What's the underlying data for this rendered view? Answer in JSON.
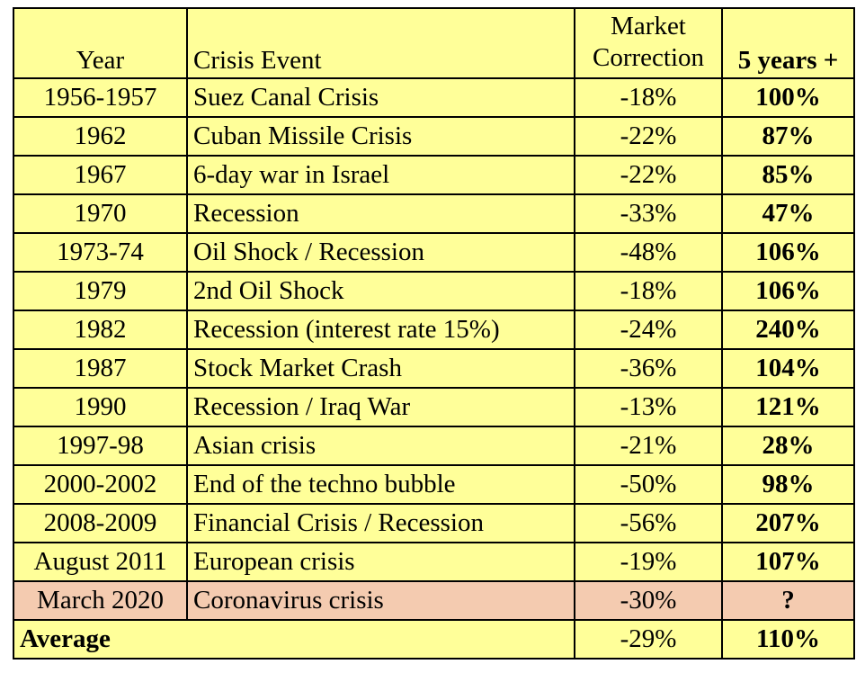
{
  "header": {
    "year": "Year",
    "event": "Crisis Event",
    "correction_line1": "Market",
    "correction_line2": "Correction",
    "five_years": "5 years +"
  },
  "rows": [
    {
      "year": "1956-1957",
      "event": "Suez Canal Crisis",
      "correction": "-18%",
      "five_years": "100%"
    },
    {
      "year": "1962",
      "event": "Cuban Missile Crisis",
      "correction": "-22%",
      "five_years": "87%"
    },
    {
      "year": "1967",
      "event": "6-day war in Israel",
      "correction": "-22%",
      "five_years": "85%"
    },
    {
      "year": "1970",
      "event": "Recession",
      "correction": "-33%",
      "five_years": "47%"
    },
    {
      "year": "1973-74",
      "event": "Oil Shock / Recession",
      "correction": "-48%",
      "five_years": "106%"
    },
    {
      "year": "1979",
      "event": "2nd Oil Shock",
      "correction": "-18%",
      "five_years": "106%"
    },
    {
      "year": "1982",
      "event": "Recession (interest rate 15%)",
      "correction": "-24%",
      "five_years": "240%"
    },
    {
      "year": "1987",
      "event": "Stock Market Crash",
      "correction": "-36%",
      "five_years": "104%"
    },
    {
      "year": "1990",
      "event": "Recession / Iraq War",
      "correction": "-13%",
      "five_years": "121%"
    },
    {
      "year": "1997-98",
      "event": "Asian crisis",
      "correction": "-21%",
      "five_years": "28%"
    },
    {
      "year": "2000-2002",
      "event": "End of the techno bubble",
      "correction": "-50%",
      "five_years": "98%"
    },
    {
      "year": "2008-2009",
      "event": "Financial Crisis / Recession",
      "correction": "-56%",
      "five_years": "207%"
    },
    {
      "year": "August 2011",
      "event": "European crisis",
      "correction": "-19%",
      "five_years": "107%"
    },
    {
      "year": "March 2020",
      "event": "Coronavirus crisis",
      "correction": "-30%",
      "five_years": "?"
    }
  ],
  "average": {
    "label": "Average",
    "correction": "-29%",
    "five_years": "110%"
  },
  "colors": {
    "table_fill": "#ffff99",
    "highlight_fill": "#f4cbb0",
    "border": "#000000"
  }
}
